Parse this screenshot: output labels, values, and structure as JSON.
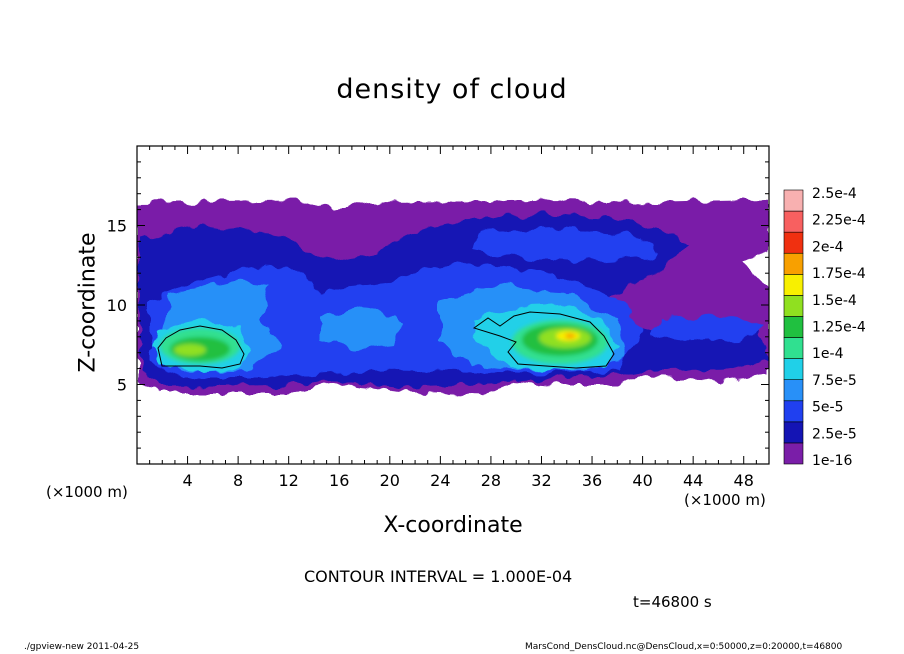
{
  "chart_data": {
    "type": "heatmap",
    "title": "density of cloud",
    "xlabel": "X-coordinate",
    "ylabel": "Z-coordinate",
    "x_unit": "(×1000 m)",
    "xlim": [
      0,
      50
    ],
    "ylim": [
      0,
      20
    ],
    "x_ticks": [
      4,
      8,
      12,
      16,
      20,
      24,
      28,
      32,
      36,
      40,
      44,
      48
    ],
    "y_ticks": [
      5,
      10,
      15
    ],
    "colorbar": {
      "labels": [
        "2.5e-4",
        "2.25e-4",
        "2e-4",
        "1.75e-4",
        "1.5e-4",
        "1.25e-4",
        "1e-4",
        "7.5e-5",
        "5e-5",
        "2.5e-5",
        "1e-16"
      ],
      "levels": [
        1e-16,
        2.5e-05,
        5e-05,
        7.5e-05,
        0.0001,
        0.000125,
        0.00015,
        0.000175,
        0.0002,
        0.000225,
        0.00025
      ],
      "colors": [
        "#7a1ea8",
        "#1414b4",
        "#2040f0",
        "#2890f8",
        "#20d0e8",
        "#30e090",
        "#20c040",
        "#90e020",
        "#f8f000",
        "#f8a000",
        "#f03010",
        "#f86060",
        "#f8b0b0"
      ]
    },
    "cloud_regions": [
      {
        "x_range": [
          0.5,
          12
        ],
        "z_range": [
          4.5,
          16.5
        ],
        "peak": 0.00012,
        "peak_x": 5.5,
        "peak_z": 7.7
      },
      {
        "x_range": [
          26,
          39
        ],
        "z_range": [
          5.5,
          11
        ],
        "peak": 0.00016,
        "peak_x": 33,
        "peak_z": 7.6
      },
      {
        "x_range": [
          13,
          26
        ],
        "z_range": [
          4.5,
          16.5
        ],
        "peak": 6e-05,
        "peak_x": 18,
        "peak_z": 8
      }
    ],
    "contour_level": 0.0001
  },
  "texts": {
    "contour_interval": "CONTOUR INTERVAL = 1.000E-04",
    "time": "t=46800 s",
    "footer_left": "./gpview-new   2011-04-25",
    "footer_right": "MarsCond_DensCloud.nc@DensCloud,x=0:50000,z=0:20000,t=46800"
  }
}
